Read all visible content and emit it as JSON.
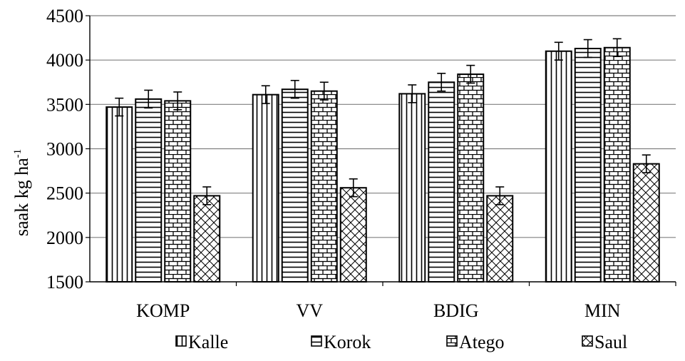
{
  "chart_data": {
    "type": "bar",
    "ylabel": "saak kg ha",
    "ylabel_superscript": "-1",
    "ylim": [
      1500,
      4500
    ],
    "yticks": [
      1500,
      2000,
      2500,
      3000,
      3500,
      4000,
      4500
    ],
    "categories": [
      "KOMP",
      "VV",
      "BDIG",
      "MIN"
    ],
    "error_bar": 100,
    "gridlines": true,
    "legend_position": "bottom",
    "series": [
      {
        "name": "Kalle",
        "pattern": "vertical-lines",
        "values": [
          3470,
          3610,
          3620,
          4100
        ]
      },
      {
        "name": "Korok",
        "pattern": "horizontal-lines",
        "values": [
          3560,
          3670,
          3750,
          4130
        ]
      },
      {
        "name": "Atego",
        "pattern": "brick",
        "values": [
          3540,
          3650,
          3840,
          4140
        ]
      },
      {
        "name": "Saul",
        "pattern": "diagonal-cross",
        "values": [
          2470,
          2560,
          2470,
          2830
        ]
      }
    ]
  }
}
